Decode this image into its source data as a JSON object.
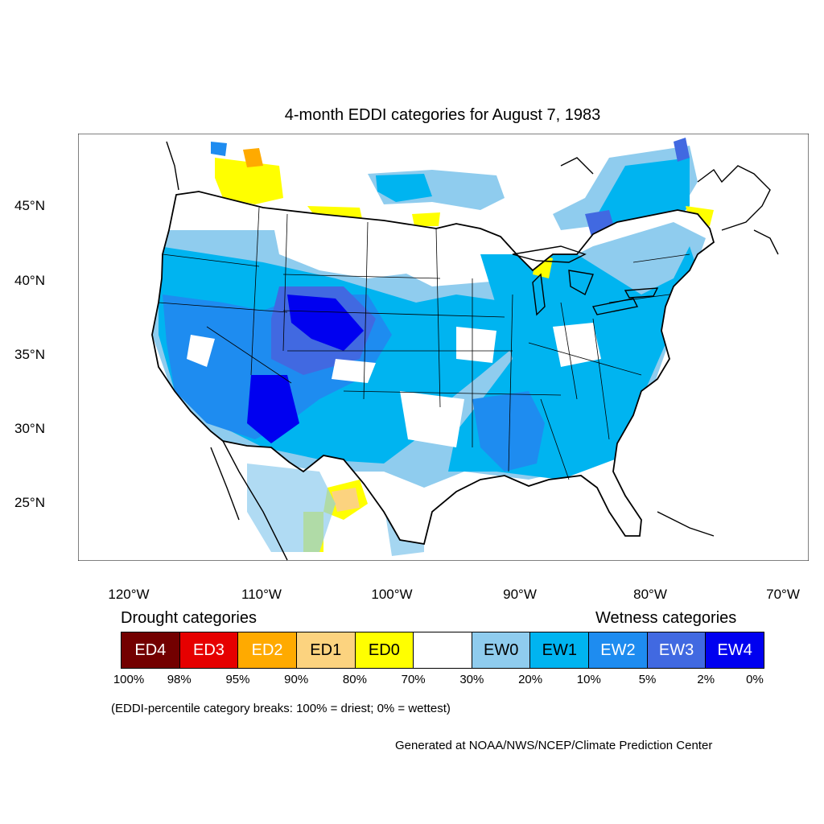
{
  "title": "4-month EDDI categories for August 7, 1983",
  "axes": {
    "lat_labels": [
      "45°N",
      "40°N",
      "35°N",
      "30°N",
      "25°N"
    ],
    "lon_labels": [
      "120°W",
      "110°W",
      "100°W",
      "90°W",
      "80°W",
      "70°W"
    ]
  },
  "legend": {
    "drought_heading": "Drought categories",
    "wetness_heading": "Wetness categories",
    "categories": [
      {
        "label": "ED4",
        "color": "#730000",
        "text_color": "#ffffff"
      },
      {
        "label": "ED3",
        "color": "#e60000",
        "text_color": "#ffffff"
      },
      {
        "label": "ED2",
        "color": "#ffaa00",
        "text_color": "#ffffff"
      },
      {
        "label": "ED1",
        "color": "#fcd37f",
        "text_color": "#000000"
      },
      {
        "label": "ED0",
        "color": "#ffff00",
        "text_color": "#000000"
      },
      {
        "label": "",
        "color": "#ffffff",
        "text_color": "#000000"
      },
      {
        "label": "EW0",
        "color": "#8fccee",
        "text_color": "#000000"
      },
      {
        "label": "EW1",
        "color": "#00b4f0",
        "text_color": "#000000"
      },
      {
        "label": "EW2",
        "color": "#1e8cf0",
        "text_color": "#ffffff"
      },
      {
        "label": "EW3",
        "color": "#4169e1",
        "text_color": "#ffffff"
      },
      {
        "label": "EW4",
        "color": "#0000f0",
        "text_color": "#ffffff"
      }
    ],
    "percentiles": [
      "100%",
      "98%",
      "95%",
      "90%",
      "80%",
      "70%",
      "30%",
      "20%",
      "10%",
      "5%",
      "2%",
      "0%"
    ]
  },
  "note": "(EDDI-percentile category breaks: 100% = driest; 0% = wettest)",
  "credit": "Generated at NOAA/NWS/NCEP/Climate Prediction Center"
}
